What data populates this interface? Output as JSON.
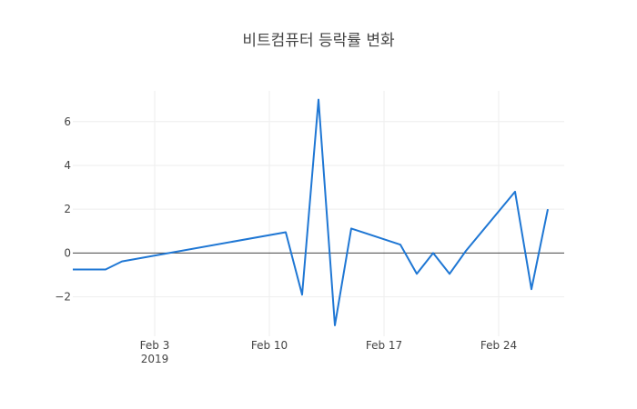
{
  "chart_data": {
    "type": "line",
    "title": "비트컴퓨터 등락률 변화",
    "xlabel": "",
    "ylabel": "",
    "x_tick_labels": [
      {
        "date": "2019-02-03",
        "label": "Feb 3",
        "sublabel": "2019"
      },
      {
        "date": "2019-02-10",
        "label": "Feb 10",
        "sublabel": ""
      },
      {
        "date": "2019-02-17",
        "label": "Feb 17",
        "sublabel": ""
      },
      {
        "date": "2019-02-24",
        "label": "Feb 24",
        "sublabel": ""
      }
    ],
    "y_tick_labels": [
      {
        "value": -2,
        "label": "−2"
      },
      {
        "value": 0,
        "label": "0"
      },
      {
        "value": 2,
        "label": "2"
      },
      {
        "value": 4,
        "label": "4"
      },
      {
        "value": 6,
        "label": "6"
      }
    ],
    "xlim": [
      "2019-01-29",
      "2019-02-28"
    ],
    "ylim": [
      -3.8,
      7.4
    ],
    "grid": true,
    "series": [
      {
        "color": "#1f77d4",
        "x": [
          "2019-01-29",
          "2019-01-30",
          "2019-01-31",
          "2019-02-01",
          "2019-02-11",
          "2019-02-12",
          "2019-02-13",
          "2019-02-14",
          "2019-02-15",
          "2019-02-18",
          "2019-02-19",
          "2019-02-20",
          "2019-02-21",
          "2019-02-22",
          "2019-02-25",
          "2019-02-26",
          "2019-02-27"
        ],
        "y": [
          -0.75,
          -0.75,
          -0.75,
          -0.38,
          0.95,
          -1.9,
          7.0,
          -3.3,
          1.12,
          0.38,
          -0.95,
          0.0,
          -0.95,
          0.1,
          2.8,
          -1.65,
          2.0
        ]
      }
    ]
  }
}
